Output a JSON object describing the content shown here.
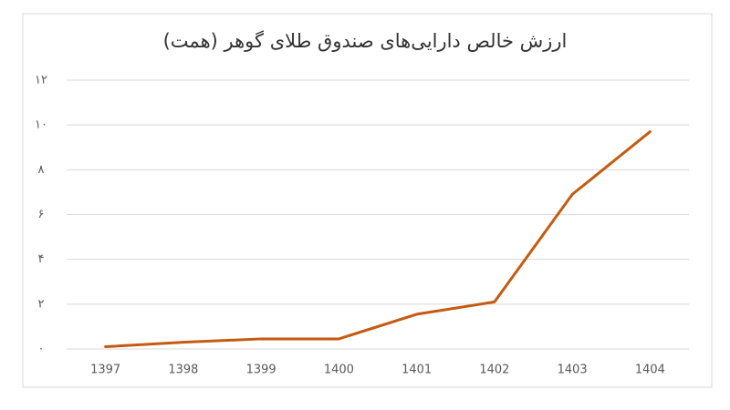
{
  "chart_data": {
    "type": "line",
    "title": "ارزش خالص دارایی‌های صندوق طلای گوهر (همت)",
    "categories": [
      "1397",
      "1398",
      "1399",
      "1400",
      "1401",
      "1402",
      "1403",
      "1404"
    ],
    "values": [
      0.1,
      0.3,
      0.45,
      0.45,
      1.55,
      2.1,
      6.9,
      9.7
    ],
    "color": "#c55a11",
    "ylim": [
      0,
      12
    ],
    "yticks": [
      {
        "value": 0,
        "label": "۰"
      },
      {
        "value": 2,
        "label": "۲"
      },
      {
        "value": 4,
        "label": "۴"
      },
      {
        "value": 6,
        "label": "۶"
      },
      {
        "value": 8,
        "label": "۸"
      },
      {
        "value": 10,
        "label": "۱۰"
      },
      {
        "value": 12,
        "label": "۱۲"
      }
    ],
    "grid": true
  }
}
